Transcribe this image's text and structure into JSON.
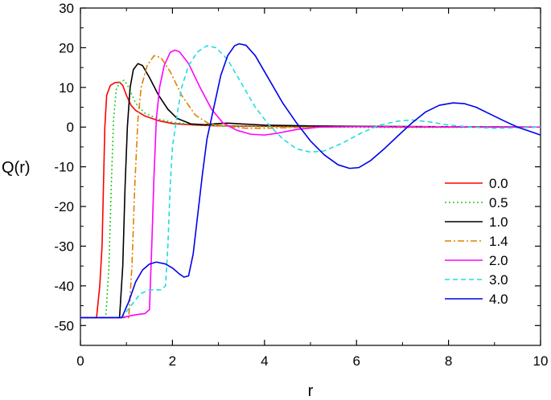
{
  "chart_data": {
    "type": "line",
    "xlabel": "r",
    "ylabel": "Q(r)",
    "xlim": [
      0,
      10
    ],
    "ylim": [
      -55,
      30
    ],
    "xticks": [
      0,
      2,
      4,
      6,
      8,
      10
    ],
    "yticks": [
      -50,
      -40,
      -30,
      -20,
      -10,
      0,
      10,
      20,
      30
    ],
    "grid": false,
    "legend_position": "right",
    "series": [
      {
        "name": "0.0",
        "color": "#ff0000",
        "dash": "solid",
        "points": [
          [
            0,
            -48
          ],
          [
            0.35,
            -48
          ],
          [
            0.42,
            -40
          ],
          [
            0.47,
            -30
          ],
          [
            0.5,
            -15
          ],
          [
            0.53,
            0
          ],
          [
            0.57,
            8
          ],
          [
            0.65,
            10.5
          ],
          [
            0.75,
            11.2
          ],
          [
            0.85,
            11.3
          ],
          [
            0.92,
            10.5
          ],
          [
            1.0,
            8
          ],
          [
            1.1,
            5.5
          ],
          [
            1.2,
            4.2
          ],
          [
            1.4,
            2.8
          ],
          [
            1.7,
            1.6
          ],
          [
            2.0,
            0.9
          ],
          [
            2.5,
            0.5
          ],
          [
            3.0,
            0.3
          ],
          [
            4.0,
            0.2
          ],
          [
            6.0,
            0.1
          ],
          [
            8.0,
            0.05
          ],
          [
            10.0,
            0
          ]
        ]
      },
      {
        "name": "0.5",
        "color": "#22cc22",
        "dash": "dotted",
        "points": [
          [
            0,
            -48
          ],
          [
            0.55,
            -48
          ],
          [
            0.62,
            -35
          ],
          [
            0.67,
            -15
          ],
          [
            0.72,
            2
          ],
          [
            0.78,
            9.5
          ],
          [
            0.85,
            11.3
          ],
          [
            0.95,
            11.8
          ],
          [
            1.05,
            10
          ],
          [
            1.2,
            6
          ],
          [
            1.4,
            3.5
          ],
          [
            1.7,
            2
          ],
          [
            2.0,
            1.2
          ],
          [
            2.5,
            0.6
          ],
          [
            3.0,
            0.3
          ],
          [
            4.0,
            0.1
          ],
          [
            5.0,
            0
          ],
          [
            7.0,
            -0.1
          ],
          [
            10.0,
            0
          ]
        ]
      },
      {
        "name": "1.0",
        "color": "#000000",
        "dash": "solid",
        "points": [
          [
            0,
            -48
          ],
          [
            0.85,
            -48
          ],
          [
            0.92,
            -35
          ],
          [
            0.97,
            -15
          ],
          [
            1.02,
            0
          ],
          [
            1.08,
            10
          ],
          [
            1.15,
            14.5
          ],
          [
            1.25,
            16
          ],
          [
            1.35,
            15.5
          ],
          [
            1.5,
            12.5
          ],
          [
            1.7,
            8
          ],
          [
            1.9,
            4.5
          ],
          [
            2.1,
            2.2
          ],
          [
            2.4,
            0.8
          ],
          [
            2.7,
            0.6
          ],
          [
            3.0,
            0.9
          ],
          [
            3.2,
            1
          ],
          [
            3.5,
            0.8
          ],
          [
            4.0,
            0.5
          ],
          [
            5.0,
            0.3
          ],
          [
            6.0,
            0.2
          ],
          [
            8.0,
            0.1
          ],
          [
            10.0,
            0
          ]
        ]
      },
      {
        "name": "1.4",
        "color": "#e08000",
        "dash": "dashdot",
        "points": [
          [
            0,
            -48
          ],
          [
            0.95,
            -48
          ],
          [
            1.05,
            -48
          ],
          [
            1.12,
            -35
          ],
          [
            1.18,
            -15
          ],
          [
            1.25,
            2
          ],
          [
            1.32,
            10
          ],
          [
            1.45,
            15.5
          ],
          [
            1.6,
            18
          ],
          [
            1.75,
            17.5
          ],
          [
            1.95,
            14
          ],
          [
            2.2,
            8
          ],
          [
            2.5,
            3
          ],
          [
            2.8,
            0.8
          ],
          [
            3.2,
            0.2
          ],
          [
            3.6,
            -0.3
          ],
          [
            4.0,
            -0.3
          ],
          [
            5.0,
            0
          ],
          [
            6.0,
            0.1
          ],
          [
            8.0,
            0.1
          ],
          [
            10.0,
            0
          ]
        ]
      },
      {
        "name": "2.0",
        "color": "#ff00ff",
        "dash": "solid",
        "points": [
          [
            0,
            -48
          ],
          [
            0.9,
            -48
          ],
          [
            1.1,
            -47.5
          ],
          [
            1.25,
            -47.2
          ],
          [
            1.4,
            -47
          ],
          [
            1.5,
            -46
          ],
          [
            1.55,
            -30
          ],
          [
            1.6,
            -12
          ],
          [
            1.65,
            2
          ],
          [
            1.72,
            10
          ],
          [
            1.82,
            15.5
          ],
          [
            1.95,
            18.8
          ],
          [
            2.05,
            19.4
          ],
          [
            2.15,
            19
          ],
          [
            2.35,
            16
          ],
          [
            2.6,
            10
          ],
          [
            2.85,
            4.5
          ],
          [
            3.1,
            1
          ],
          [
            3.4,
            -0.8
          ],
          [
            3.7,
            -1.8
          ],
          [
            4.0,
            -2
          ],
          [
            4.3,
            -1.5
          ],
          [
            4.7,
            -0.6
          ],
          [
            5.2,
            0
          ],
          [
            6.0,
            0.1
          ],
          [
            7.0,
            0
          ],
          [
            8.0,
            0
          ],
          [
            10.0,
            0
          ]
        ]
      },
      {
        "name": "3.0",
        "color": "#22dddd",
        "dash": "dashed",
        "points": [
          [
            0,
            -48
          ],
          [
            0.9,
            -48
          ],
          [
            1.1,
            -45
          ],
          [
            1.3,
            -42
          ],
          [
            1.5,
            -41
          ],
          [
            1.75,
            -41
          ],
          [
            1.85,
            -40
          ],
          [
            1.9,
            -30
          ],
          [
            1.95,
            -15
          ],
          [
            2.0,
            -5
          ],
          [
            2.1,
            3
          ],
          [
            2.2,
            10
          ],
          [
            2.35,
            15.5
          ],
          [
            2.55,
            19
          ],
          [
            2.75,
            20.5
          ],
          [
            2.95,
            20
          ],
          [
            3.2,
            17
          ],
          [
            3.5,
            11
          ],
          [
            3.8,
            5
          ],
          [
            4.1,
            0.5
          ],
          [
            4.4,
            -3
          ],
          [
            4.7,
            -5.5
          ],
          [
            5.0,
            -6.3
          ],
          [
            5.3,
            -6
          ],
          [
            5.7,
            -4
          ],
          [
            6.1,
            -1.5
          ],
          [
            6.5,
            0.5
          ],
          [
            6.9,
            1.5
          ],
          [
            7.2,
            1.8
          ],
          [
            7.6,
            1.3
          ],
          [
            8.0,
            0.5
          ],
          [
            8.5,
            0
          ],
          [
            9.0,
            -0.3
          ],
          [
            10.0,
            0
          ]
        ]
      },
      {
        "name": "4.0",
        "color": "#0000ee",
        "dash": "solid",
        "points": [
          [
            0,
            -48
          ],
          [
            0.9,
            -48
          ],
          [
            1.05,
            -44
          ],
          [
            1.2,
            -39
          ],
          [
            1.35,
            -36
          ],
          [
            1.5,
            -34.5
          ],
          [
            1.65,
            -34
          ],
          [
            1.85,
            -34.5
          ],
          [
            2.0,
            -35.5
          ],
          [
            2.15,
            -37
          ],
          [
            2.25,
            -37.8
          ],
          [
            2.35,
            -37.5
          ],
          [
            2.45,
            -32
          ],
          [
            2.55,
            -22
          ],
          [
            2.65,
            -12
          ],
          [
            2.75,
            -3
          ],
          [
            2.9,
            5
          ],
          [
            3.05,
            13
          ],
          [
            3.2,
            18
          ],
          [
            3.35,
            20.5
          ],
          [
            3.45,
            21
          ],
          [
            3.6,
            20.6
          ],
          [
            3.8,
            18
          ],
          [
            4.1,
            12
          ],
          [
            4.4,
            6
          ],
          [
            4.7,
            1
          ],
          [
            5.0,
            -3.5
          ],
          [
            5.3,
            -7
          ],
          [
            5.6,
            -9.5
          ],
          [
            5.85,
            -10.4
          ],
          [
            6.05,
            -10.2
          ],
          [
            6.3,
            -8.5
          ],
          [
            6.6,
            -5.5
          ],
          [
            6.9,
            -2.2
          ],
          [
            7.2,
            1
          ],
          [
            7.5,
            3.8
          ],
          [
            7.8,
            5.5
          ],
          [
            8.1,
            6.1
          ],
          [
            8.35,
            5.9
          ],
          [
            8.6,
            5
          ],
          [
            8.9,
            3.3
          ],
          [
            9.2,
            1.6
          ],
          [
            9.5,
            0
          ],
          [
            9.8,
            -1.2
          ],
          [
            10.0,
            -2
          ]
        ]
      }
    ]
  }
}
